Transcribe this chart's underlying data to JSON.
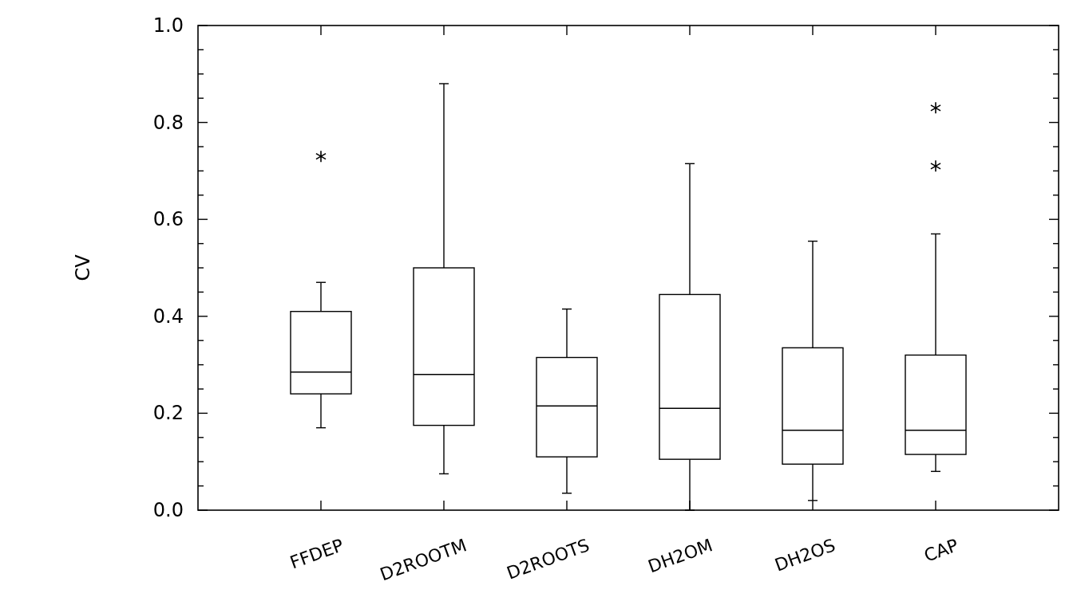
{
  "chart_data": {
    "type": "box",
    "ylabel": "CV",
    "categories": [
      "FFDEP",
      "D2ROOTM",
      "D2ROOTS",
      "DH2OM",
      "DH2OS",
      "CAP"
    ],
    "ylim": [
      0,
      1
    ],
    "yticks": [
      {
        "value": 0,
        "label": "0.0"
      },
      {
        "value": 0.05,
        "label": null
      },
      {
        "value": 0.1,
        "label": null
      },
      {
        "value": 0.15,
        "label": null
      },
      {
        "value": 0.2,
        "label": "0.2"
      },
      {
        "value": 0.25,
        "label": null
      },
      {
        "value": 0.3,
        "label": null
      },
      {
        "value": 0.35,
        "label": null
      },
      {
        "value": 0.4,
        "label": "0.4"
      },
      {
        "value": 0.45,
        "label": null
      },
      {
        "value": 0.5,
        "label": null
      },
      {
        "value": 0.55,
        "label": null
      },
      {
        "value": 0.6,
        "label": "0.6"
      },
      {
        "value": 0.65,
        "label": null
      },
      {
        "value": 0.7,
        "label": null
      },
      {
        "value": 0.75,
        "label": null
      },
      {
        "value": 0.8,
        "label": "0.8"
      },
      {
        "value": 0.85,
        "label": null
      },
      {
        "value": 0.9,
        "label": null
      },
      {
        "value": 0.95,
        "label": null
      },
      {
        "value": 1,
        "label": "1.0"
      }
    ],
    "boxes": [
      {
        "low": 0.17,
        "q1": 0.24,
        "median": 0.285,
        "q3": 0.41,
        "high": 0.47,
        "outliers": [
          0.73
        ]
      },
      {
        "low": 0.075,
        "q1": 0.175,
        "median": 0.28,
        "q3": 0.5,
        "high": 0.88
      },
      {
        "low": 0.035,
        "q1": 0.11,
        "median": 0.215,
        "q3": 0.315,
        "high": 0.415
      },
      {
        "low": 0,
        "q1": 0.105,
        "median": 0.21,
        "q3": 0.445,
        "high": 0.715
      },
      {
        "low": 0.02,
        "q1": 0.095,
        "median": 0.165,
        "q3": 0.335,
        "high": 0.555
      },
      {
        "low": 0.08,
        "q1": 0.115,
        "median": 0.165,
        "q3": 0.32,
        "high": 0.57,
        "outliers": [
          0.83,
          0.71
        ]
      }
    ],
    "grid": false
  }
}
